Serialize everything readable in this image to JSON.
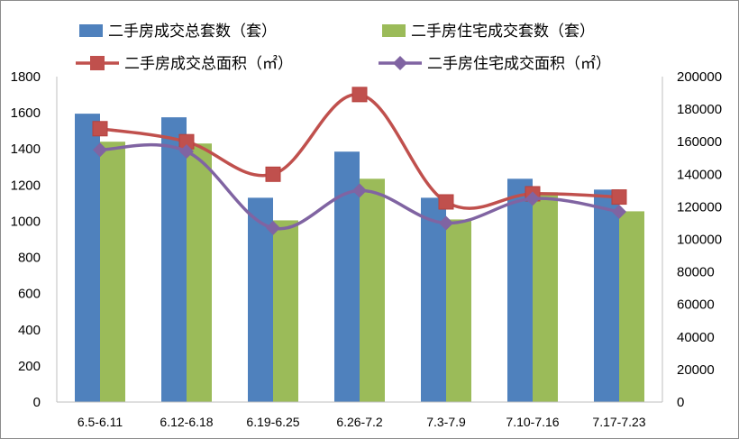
{
  "chart_data": {
    "type": "bar",
    "categories": [
      "6.5-6.11",
      "6.12-6.18",
      "6.19-6.25",
      "6.26-7.2",
      "7.3-7.9",
      "7.10-7.16",
      "7.17-7.23"
    ],
    "series": [
      {
        "name": "二手房成交总套数（套）",
        "kind": "bar",
        "axis": "left",
        "color": "#4f81bd",
        "values": [
          1595,
          1575,
          1130,
          1385,
          1130,
          1235,
          1175
        ]
      },
      {
        "name": "二手房住宅成交套数（套）",
        "kind": "bar",
        "axis": "left",
        "color": "#9bbb59",
        "values": [
          1440,
          1430,
          1005,
          1235,
          1010,
          1160,
          1055
        ]
      },
      {
        "name": "二手房成交总面积（㎡）",
        "kind": "line",
        "axis": "right",
        "color": "#c0504d",
        "marker": "square",
        "values": [
          168000,
          160000,
          140000,
          189000,
          123000,
          128000,
          126000
        ]
      },
      {
        "name": "二手房住宅成交面积（㎡）",
        "kind": "line",
        "axis": "right",
        "color": "#8064a2",
        "marker": "diamond",
        "values": [
          155000,
          154000,
          107000,
          130000,
          110000,
          125000,
          117000
        ]
      }
    ],
    "y_left": {
      "min": 0,
      "max": 1800,
      "step": 200,
      "ticks": [
        "0",
        "200",
        "400",
        "600",
        "800",
        "1000",
        "1200",
        "1400",
        "1600",
        "1800"
      ]
    },
    "y_right": {
      "min": 0,
      "max": 200000,
      "step": 20000,
      "ticks": [
        "0",
        "20000",
        "40000",
        "60000",
        "80000",
        "100000",
        "120000",
        "140000",
        "160000",
        "180000",
        "200000"
      ]
    },
    "grid": false,
    "legend": "top"
  }
}
